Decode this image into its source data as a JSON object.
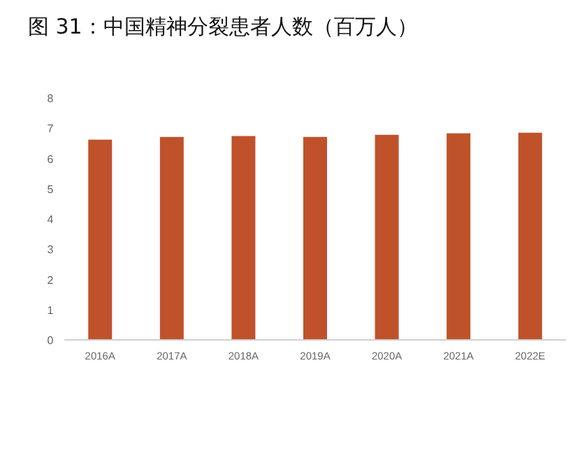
{
  "chart_data": {
    "type": "bar",
    "title": "图 31：中国精神分裂患者人数（百万人）",
    "categories": [
      "2016A",
      "2017A",
      "2018A",
      "2019A",
      "2020A",
      "2021A",
      "2022E"
    ],
    "values": [
      6.62,
      6.71,
      6.74,
      6.71,
      6.78,
      6.83,
      6.85
    ],
    "color": "#c0522b",
    "ylim": [
      0,
      8
    ],
    "yticks": [
      0,
      1,
      2,
      3,
      4,
      5,
      6,
      7,
      8
    ],
    "grid": false
  }
}
